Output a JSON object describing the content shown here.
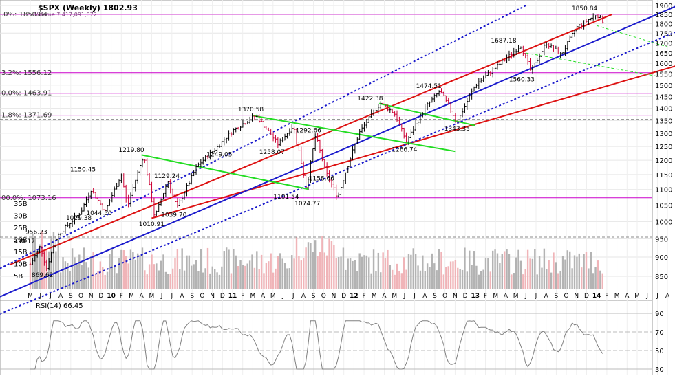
{
  "header": {
    "symbol_title": "$SPX (Weekly) 1802.93",
    "volume_label": "Volume 7,417,091,072"
  },
  "rsi_panel": {
    "label": "RSI(14) 66.45",
    "ticks": [
      "90",
      "70",
      "50",
      "30"
    ]
  },
  "chart_data": {
    "type": "candlestick",
    "title": "$SPX (Weekly)",
    "last_close": 1802.93,
    "price_axis": {
      "ticks": [
        850,
        900,
        950,
        1000,
        1050,
        1100,
        1150,
        1200,
        1250,
        1300,
        1350,
        1400,
        1450,
        1500,
        1550,
        1600,
        1650,
        1700,
        1750,
        1800,
        1850,
        1900
      ]
    },
    "volume_axis": {
      "ticks": [
        "35B",
        "30B",
        "25B",
        "20B",
        "15B",
        "10B",
        "5B"
      ],
      "last_volume": 7417091072
    },
    "time_axis": {
      "labels": [
        "M",
        "J",
        "J",
        "A",
        "S",
        "O",
        "N",
        "D",
        "10",
        "F",
        "M",
        "A",
        "M",
        "J",
        "J",
        "A",
        "S",
        "O",
        "N",
        "D",
        "11",
        "F",
        "M",
        "A",
        "M",
        "J",
        "J",
        "A",
        "S",
        "O",
        "N",
        "D",
        "12",
        "F",
        "M",
        "A",
        "M",
        "J",
        "J",
        "A",
        "S",
        "O",
        "N",
        "D",
        "13",
        "F",
        "M",
        "A",
        "M",
        "J",
        "J",
        "A",
        "S",
        "O",
        "N",
        "D",
        "14",
        "F",
        "M",
        "A",
        "M",
        "J",
        "J",
        "A"
      ],
      "bold_labels": [
        "10",
        "11",
        "12",
        "13",
        "14"
      ]
    },
    "price_annotations": [
      {
        "label": "869.62",
        "value": 869.62
      },
      {
        "label": "930.17",
        "value": 930.17
      },
      {
        "label": "956.23",
        "value": 956.23
      },
      {
        "label": "1029.38",
        "value": 1029.38
      },
      {
        "label": "1044.50",
        "value": 1044.5
      },
      {
        "label": "1150.45",
        "value": 1150.45
      },
      {
        "label": "1219.80",
        "value": 1219.8
      },
      {
        "label": "1010.91",
        "value": 1010.91
      },
      {
        "label": "1129.24",
        "value": 1129.24
      },
      {
        "label": "1039.70",
        "value": 1039.7
      },
      {
        "label": "1370.58",
        "value": 1370.58
      },
      {
        "label": "1249.05",
        "value": 1249.05
      },
      {
        "label": "1258.07",
        "value": 1258.07
      },
      {
        "label": "1292.66",
        "value": 1292.66
      },
      {
        "label": "1158.66",
        "value": 1158.66
      },
      {
        "label": "1101.54",
        "value": 1101.54
      },
      {
        "label": "1074.77",
        "value": 1074.77
      },
      {
        "label": "1422.38",
        "value": 1422.38
      },
      {
        "label": "1266.74",
        "value": 1266.74
      },
      {
        "label": "1474.51",
        "value": 1474.51
      },
      {
        "label": "1343.35",
        "value": 1343.35
      },
      {
        "label": "1687.18",
        "value": 1687.18
      },
      {
        "label": "1560.33",
        "value": 1560.33
      },
      {
        "label": "1850.84",
        "value": 1850.84
      }
    ],
    "fib_levels": [
      {
        "label": ".0%: 1850.84",
        "value": 1850.84
      },
      {
        "label": "3.2%: 1556.12",
        "value": 1556.12
      },
      {
        "label": "0.0%: 1463.91",
        "value": 1463.91
      },
      {
        "label": "1.8%: 1371.69",
        "value": 1371.69
      },
      {
        "label": "00.0%: 1073.16",
        "value": 1073.16
      }
    ],
    "grid": true,
    "colors": {
      "up": "#000000",
      "down": "#cc0033",
      "volume_up": "#b3b3b3",
      "volume_down": "#f0b4b8",
      "fib": "#cc00cc",
      "red_channel": "#dd1111",
      "blue_channel": "#1a1acc",
      "green_channel": "#22dd22",
      "rsi": "#808080"
    }
  }
}
